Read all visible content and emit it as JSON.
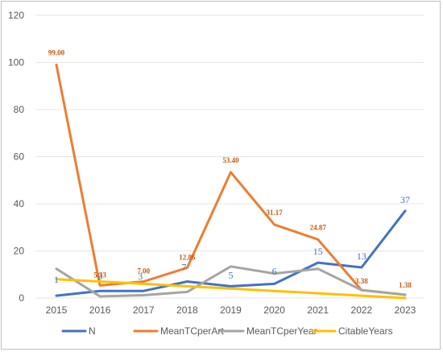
{
  "chart_data": {
    "type": "line",
    "title": "",
    "xlabel": "",
    "ylabel": "",
    "categories": [
      "2015",
      "2016",
      "2017",
      "2018",
      "2019",
      "2020",
      "2021",
      "2022",
      "2023"
    ],
    "ylim": [
      0,
      120
    ],
    "yticks": [
      0,
      20,
      40,
      60,
      80,
      100,
      120
    ],
    "grid": true,
    "legend_position": "bottom",
    "series": [
      {
        "name": "N",
        "color": "#4472c4",
        "values": [
          1,
          3,
          3,
          7,
          5,
          6,
          15,
          13,
          37
        ],
        "labels": [
          "1",
          "3",
          "3",
          "7",
          "5",
          "6",
          "15",
          "13",
          "37"
        ]
      },
      {
        "name": "MeanTCperArt",
        "color": "#ed7d31",
        "values": [
          99.0,
          5.33,
          7.0,
          12.86,
          53.4,
          31.17,
          24.87,
          3.38,
          1.38
        ],
        "labels": [
          "99.00",
          "5.33",
          "7.00",
          "12.86",
          "53.40",
          "31.17",
          "24.87",
          "3.38",
          "1.38"
        ]
      },
      {
        "name": "MeanTCperYear",
        "color": "#a5a5a5",
        "values": [
          12.4,
          0.7,
          1.2,
          2.6,
          13.4,
          10.4,
          12.4,
          3.4,
          1.4
        ]
      },
      {
        "name": "CitableYears",
        "color": "#ffc000",
        "values": [
          8,
          7,
          6,
          5,
          4,
          3,
          2,
          1,
          0
        ]
      }
    ]
  }
}
